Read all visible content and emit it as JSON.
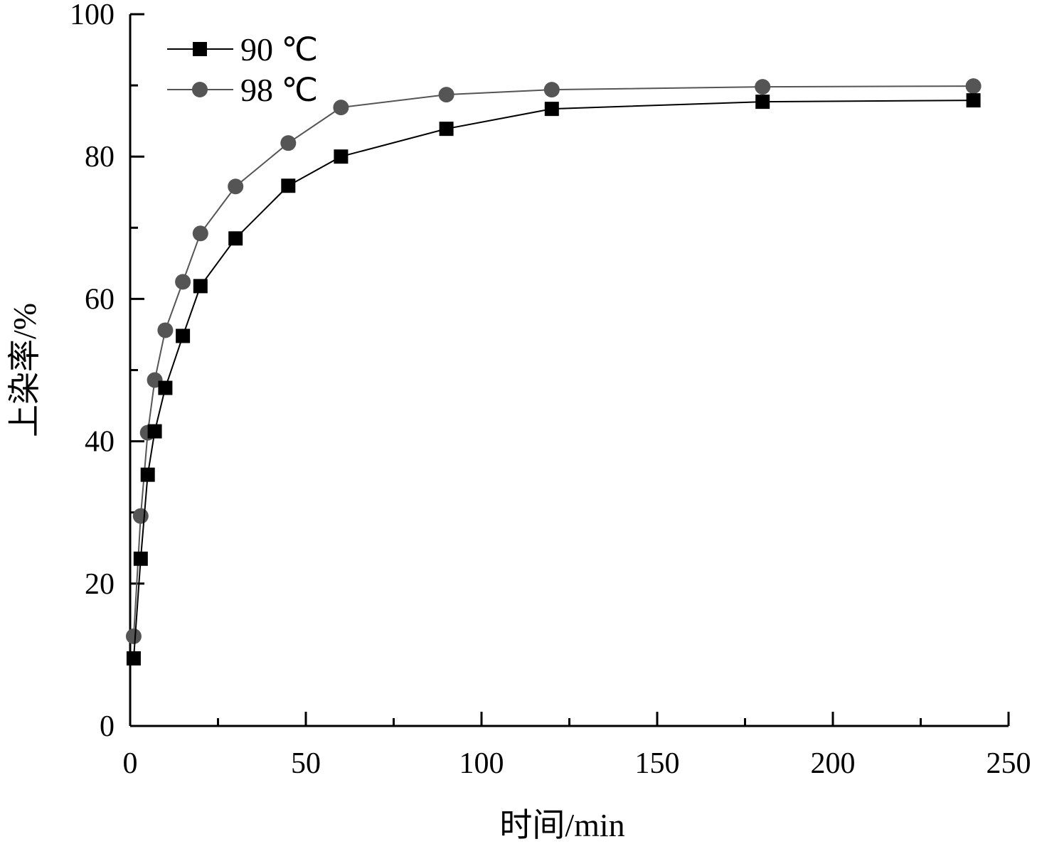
{
  "chart_data": {
    "type": "line",
    "xlabel": "时间/min",
    "ylabel": "上染率/%",
    "xlim": [
      0,
      250
    ],
    "ylim": [
      0,
      100
    ],
    "x_ticks": [
      0,
      50,
      100,
      150,
      200,
      250
    ],
    "y_ticks": [
      0,
      20,
      40,
      60,
      80,
      100
    ],
    "grid": false,
    "legend_position": "top-left",
    "series": [
      {
        "name": "90 ℃",
        "marker": "square",
        "color": "#000000",
        "x": [
          1,
          3,
          5,
          7,
          10,
          15,
          20,
          30,
          45,
          60,
          90,
          120,
          180,
          240
        ],
        "y": [
          9.5,
          23.5,
          35.3,
          41.4,
          47.5,
          54.8,
          61.8,
          68.5,
          75.9,
          80.0,
          83.9,
          86.7,
          87.7,
          87.9
        ]
      },
      {
        "name": "98 ℃",
        "marker": "circle",
        "color": "#555555",
        "x": [
          1,
          3,
          5,
          7,
          10,
          15,
          20,
          30,
          45,
          60,
          90,
          120,
          180,
          240
        ],
        "y": [
          12.6,
          29.5,
          41.2,
          48.6,
          55.6,
          62.4,
          69.2,
          75.8,
          81.9,
          86.9,
          88.7,
          89.4,
          89.8,
          89.9
        ]
      }
    ]
  }
}
